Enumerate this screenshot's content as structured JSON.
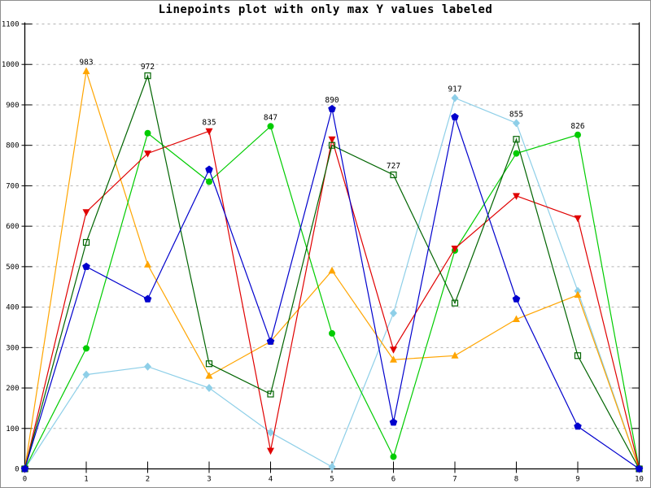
{
  "chart_data": {
    "type": "line",
    "style": "linespoints",
    "title": "Linepoints plot with only max Y values labeled",
    "xlabel": "",
    "ylabel": "",
    "xlim": [
      0,
      10
    ],
    "ylim": [
      0,
      1100
    ],
    "x_ticks": [
      0,
      1,
      2,
      3,
      4,
      5,
      6,
      7,
      8,
      9,
      10
    ],
    "y_ticks": [
      0,
      100,
      200,
      300,
      400,
      500,
      600,
      700,
      800,
      900,
      1000,
      1100
    ],
    "grid": "horizontal-dashed",
    "grid_color": "#b3b3b3",
    "axis_color": "#000000",
    "legend": "none",
    "x": [
      0,
      1,
      2,
      3,
      4,
      5,
      6,
      7,
      8,
      9,
      10
    ],
    "series": [
      {
        "name": "sky-blue-diamond",
        "color": "#8ecfe8",
        "marker": "diamond",
        "values": [
          0,
          233,
          253,
          200,
          90,
          5,
          385,
          917,
          855,
          440,
          0
        ]
      },
      {
        "name": "orange-triangle",
        "color": "#ffa500",
        "marker": "triangle-up",
        "values": [
          0,
          983,
          505,
          230,
          315,
          490,
          270,
          280,
          370,
          430,
          0
        ]
      },
      {
        "name": "green-circle",
        "color": "#00cc00",
        "marker": "circle",
        "values": [
          0,
          298,
          830,
          710,
          847,
          335,
          30,
          540,
          780,
          826,
          0
        ]
      },
      {
        "name": "red-triangle-down",
        "color": "#e00000",
        "marker": "triangle-down",
        "values": [
          0,
          635,
          780,
          835,
          45,
          815,
          295,
          545,
          675,
          620,
          0
        ]
      },
      {
        "name": "dark-green-square",
        "color": "#006400",
        "marker": "square-open",
        "values": [
          0,
          560,
          972,
          260,
          185,
          800,
          727,
          410,
          815,
          280,
          0
        ]
      },
      {
        "name": "blue-pentagon",
        "color": "#0000cd",
        "marker": "pentagon",
        "values": [
          0,
          500,
          420,
          740,
          315,
          890,
          115,
          870,
          420,
          105,
          0
        ]
      }
    ],
    "point_labels": [
      {
        "x": 1,
        "y": 983,
        "text": "983"
      },
      {
        "x": 2,
        "y": 972,
        "text": "972"
      },
      {
        "x": 3,
        "y": 835,
        "text": "835"
      },
      {
        "x": 4,
        "y": 847,
        "text": "847"
      },
      {
        "x": 5,
        "y": 890,
        "text": "890"
      },
      {
        "x": 6,
        "y": 727,
        "text": "727"
      },
      {
        "x": 7,
        "y": 917,
        "text": "917"
      },
      {
        "x": 8,
        "y": 855,
        "text": "855"
      },
      {
        "x": 9,
        "y": 826,
        "text": "826"
      }
    ]
  }
}
